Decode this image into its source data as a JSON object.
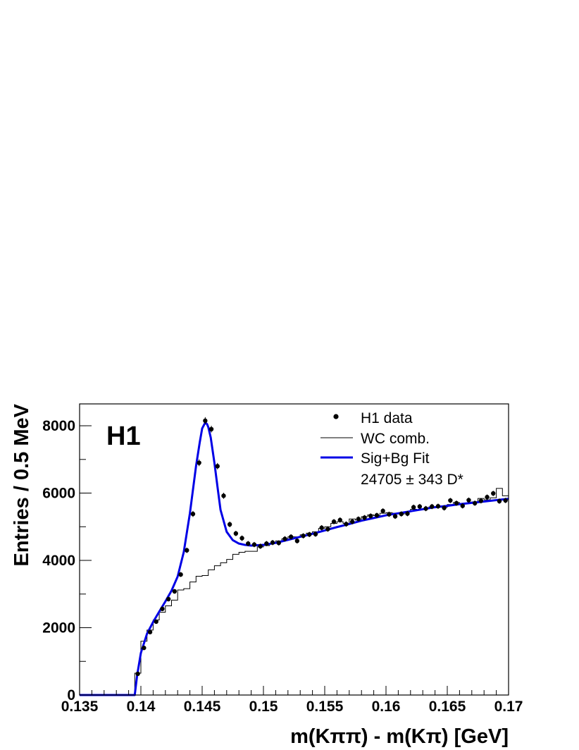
{
  "chart_data": {
    "type": "scatter",
    "experiment_label": "H1",
    "xlabel": "m(Kππ) - m(Kπ) [GeV]",
    "ylabel": "Entries / 0.5 MeV",
    "xlim": [
      0.135,
      0.17
    ],
    "ylim": [
      0,
      8650
    ],
    "x_ticks": [
      0.135,
      0.14,
      0.145,
      0.15,
      0.155,
      0.16,
      0.165,
      0.17
    ],
    "x_tick_labels": [
      "0.135",
      "0.14",
      "0.145",
      "0.15",
      "0.155",
      "0.16",
      "0.165",
      "0.17"
    ],
    "y_ticks": [
      0,
      2000,
      4000,
      6000,
      8000
    ],
    "y_tick_labels": [
      "0",
      "2000",
      "4000",
      "6000",
      "8000"
    ],
    "legend": {
      "position": "top-right",
      "entries": [
        {
          "label": "H1 data",
          "marker": "point"
        },
        {
          "label": "WC comb.",
          "marker": "thin-line"
        },
        {
          "label": "Sig+Bg Fit",
          "marker": "thick-line"
        }
      ],
      "annotation": "24705 ± 343 D*"
    },
    "colors": {
      "data": "#000000",
      "wc": "#000000",
      "fit": "#0000e6"
    },
    "series": [
      {
        "name": "H1 data",
        "kind": "points",
        "x": [
          0.13975,
          0.14025,
          0.14075,
          0.14125,
          0.14175,
          0.14225,
          0.14275,
          0.14325,
          0.14375,
          0.14425,
          0.14475,
          0.14525,
          0.14575,
          0.14625,
          0.14675,
          0.14725,
          0.14775,
          0.14825,
          0.14875,
          0.14925,
          0.14975,
          0.15025,
          0.15075,
          0.15125,
          0.15175,
          0.15225,
          0.15275,
          0.15325,
          0.15375,
          0.15425,
          0.15475,
          0.15525,
          0.15575,
          0.15625,
          0.15675,
          0.15725,
          0.15775,
          0.15825,
          0.15875,
          0.15925,
          0.15975,
          0.16025,
          0.16075,
          0.16125,
          0.16175,
          0.16225,
          0.16275,
          0.16325,
          0.16375,
          0.16425,
          0.16475,
          0.16525,
          0.16575,
          0.16625,
          0.16675,
          0.16725,
          0.16775,
          0.16825,
          0.16875,
          0.16925,
          0.16975
        ],
        "y": [
          630,
          1400,
          1870,
          2180,
          2560,
          2850,
          3080,
          3580,
          4300,
          5380,
          6900,
          8150,
          7900,
          6800,
          5920,
          5070,
          4800,
          4660,
          4500,
          4470,
          4420,
          4500,
          4530,
          4520,
          4640,
          4700,
          4580,
          4730,
          4770,
          4780,
          4970,
          4930,
          5150,
          5200,
          5080,
          5150,
          5230,
          5270,
          5320,
          5340,
          5470,
          5370,
          5310,
          5380,
          5390,
          5580,
          5600,
          5540,
          5600,
          5610,
          5560,
          5780,
          5700,
          5620,
          5790,
          5700,
          5770,
          5880,
          5990,
          5760,
          5780
        ],
        "y_err": [
          40,
          55,
          60,
          62,
          65,
          68,
          70,
          72,
          80,
          90,
          100,
          105,
          100,
          95,
          90,
          85,
          80,
          80,
          78,
          78,
          78,
          78,
          78,
          78,
          78,
          78,
          78,
          78,
          78,
          78,
          78,
          78,
          78,
          78,
          78,
          78,
          78,
          78,
          78,
          78,
          78,
          78,
          78,
          78,
          78,
          78,
          78,
          78,
          78,
          78,
          78,
          78,
          78,
          78,
          78,
          78,
          78,
          78,
          78,
          78,
          78
        ]
      },
      {
        "name": "WC comb.",
        "kind": "step",
        "bin_edges": [
          0.1395,
          0.14,
          0.1405,
          0.141,
          0.1415,
          0.142,
          0.1425,
          0.143,
          0.1435,
          0.144,
          0.1445,
          0.145,
          0.1455,
          0.146,
          0.1465,
          0.147,
          0.1475,
          0.148,
          0.1485,
          0.149,
          0.1495,
          0.15,
          0.1505,
          0.151,
          0.1515,
          0.152,
          0.1525,
          0.153,
          0.1535,
          0.154,
          0.1545,
          0.155,
          0.1555,
          0.156,
          0.1565,
          0.157,
          0.1575,
          0.158,
          0.1585,
          0.159,
          0.1595,
          0.16,
          0.1605,
          0.161,
          0.1615,
          0.162,
          0.1625,
          0.163,
          0.1635,
          0.164,
          0.1645,
          0.165,
          0.1655,
          0.166,
          0.1665,
          0.167,
          0.1675,
          0.168,
          0.1685,
          0.169,
          0.1695,
          0.17
        ],
        "values": [
          650,
          1600,
          1930,
          2230,
          2460,
          2650,
          2820,
          3120,
          3160,
          3360,
          3530,
          3550,
          3720,
          3840,
          3930,
          4030,
          4180,
          4240,
          4270,
          4270,
          4400,
          4440,
          4510,
          4580,
          4640,
          4700,
          4700,
          4760,
          4810,
          4850,
          4950,
          5000,
          5100,
          5150,
          5100,
          5230,
          5200,
          5300,
          5350,
          5330,
          5400,
          5420,
          5400,
          5380,
          5440,
          5520,
          5500,
          5540,
          5590,
          5600,
          5580,
          5660,
          5720,
          5680,
          5700,
          5740,
          5840,
          5800,
          5860,
          6140,
          5920
        ]
      },
      {
        "name": "Sig+Bg Fit",
        "kind": "line",
        "x": [
          0.1395,
          0.1397,
          0.14,
          0.1405,
          0.141,
          0.1415,
          0.142,
          0.1425,
          0.143,
          0.1435,
          0.144,
          0.1445,
          0.1448,
          0.145,
          0.1452,
          0.1453,
          0.1454,
          0.1455,
          0.1457,
          0.146,
          0.1463,
          0.1465,
          0.147,
          0.1475,
          0.148,
          0.1485,
          0.149,
          0.1495,
          0.15,
          0.151,
          0.152,
          0.153,
          0.154,
          0.155,
          0.156,
          0.157,
          0.158,
          0.159,
          0.16,
          0.161,
          0.162,
          0.163,
          0.164,
          0.165,
          0.166,
          0.167,
          0.168,
          0.169,
          0.17
        ],
        "y": [
          0,
          600,
          1250,
          1820,
          2170,
          2480,
          2780,
          3100,
          3520,
          4250,
          5400,
          6800,
          7500,
          7920,
          8060,
          8080,
          8050,
          7960,
          7650,
          6900,
          6050,
          5500,
          4850,
          4600,
          4500,
          4460,
          4440,
          4450,
          4460,
          4520,
          4610,
          4700,
          4790,
          4890,
          4990,
          5080,
          5180,
          5260,
          5340,
          5400,
          5460,
          5520,
          5580,
          5620,
          5670,
          5710,
          5750,
          5790,
          5830
        ]
      }
    ]
  }
}
